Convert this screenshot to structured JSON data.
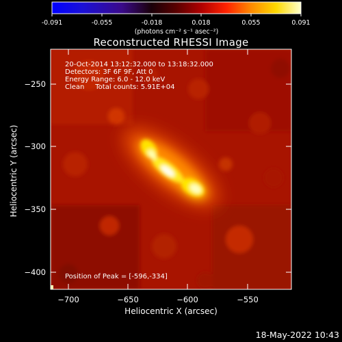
{
  "colorbar": {
    "tick_labels": [
      "-0.091",
      "-0.055",
      "-0.018",
      "0.018",
      "0.055",
      "0.091"
    ],
    "tick_values": [
      -0.091,
      -0.055,
      -0.018,
      0.018,
      0.055,
      0.091
    ],
    "range": [
      -0.091,
      0.091
    ],
    "units": "(photons cm⁻² s⁻¹ asec⁻²)"
  },
  "chart_data": {
    "type": "heatmap",
    "title": "Reconstructed RHESSI Image",
    "xlabel": "Heliocentric X (arcsec)",
    "ylabel": "Heliocentric Y (arcsec)",
    "xlim": [
      -715,
      -515
    ],
    "ylim": [
      -415,
      -215
    ],
    "x_ticks": [
      -700,
      -650,
      -600,
      -550
    ],
    "y_ticks": [
      -250,
      -300,
      -350,
      -400
    ],
    "x_tick_labels": [
      "−700",
      "−650",
      "−600",
      "−550"
    ],
    "y_tick_labels": [
      "−250",
      "−300",
      "−350",
      "−400"
    ],
    "colormap": "red-temperature (dark red to yellow-white)",
    "source_peak": [
      -596,
      -334
    ],
    "annotations": [
      "20-Oct-2014 13:12:32.000 to 13:18:32.000",
      "Detectors: 3F 6F 9F, Att 0",
      "Energy Range: 6.0 - 12.0 keV",
      "Clean     Total counts: 5.91E+04",
      "Position of Peak = [-596,-334]"
    ]
  },
  "footer": {
    "date": "18-May-2022 10:43"
  }
}
